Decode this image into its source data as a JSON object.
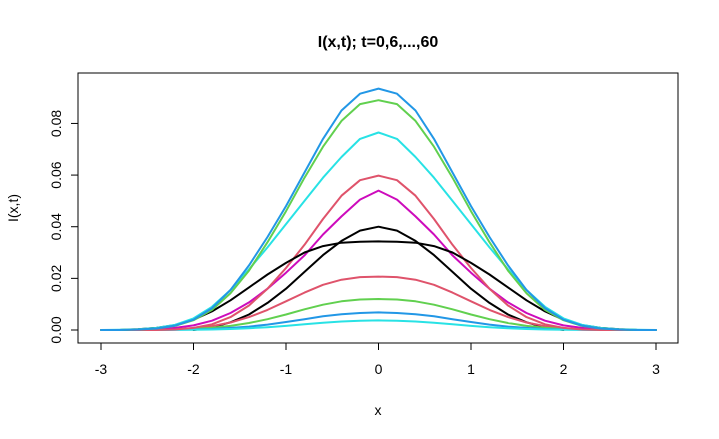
{
  "chart_data": {
    "type": "line",
    "title": "I(x,t); t=0,6,...,60",
    "xlabel": "x",
    "ylabel": "I(x,t)",
    "xlim": [
      -3,
      3
    ],
    "ylim": [
      0,
      0.094
    ],
    "xticks": [
      "-3",
      "-2",
      "-1",
      "0",
      "1",
      "2",
      "3"
    ],
    "yticks": [
      "0.00",
      "0.02",
      "0.04",
      "0.06",
      "0.08"
    ],
    "grid": false,
    "legend": "none",
    "x": [
      -3.0,
      -2.8,
      -2.6,
      -2.4,
      -2.2,
      -2.0,
      -1.8,
      -1.6,
      -1.4,
      -1.2,
      -1.0,
      -0.8,
      -0.6,
      -0.4,
      -0.2,
      0.0,
      0.2,
      0.4,
      0.6,
      0.8,
      1.0,
      1.2,
      1.4,
      1.6,
      1.8,
      2.0,
      2.2,
      2.4,
      2.6,
      2.8,
      3.0
    ],
    "series": [
      {
        "color": "#000000",
        "xrange": [
          -2.0,
          2.0
        ],
        "values": [
          null,
          null,
          null,
          null,
          null,
          0.0,
          0.001,
          0.003,
          0.006,
          0.0105,
          0.016,
          0.0225,
          0.029,
          0.0345,
          0.0385,
          0.04,
          0.0385,
          0.0345,
          0.029,
          0.0225,
          0.016,
          0.0105,
          0.006,
          0.003,
          0.001,
          0.0,
          null,
          null,
          null,
          null,
          null
        ]
      },
      {
        "color": "#DF536B",
        "values": [
          0.0,
          0.0,
          0.0,
          0.0001,
          0.0003,
          0.0007,
          0.0015,
          0.0029,
          0.005,
          0.0078,
          0.0111,
          0.0145,
          0.0175,
          0.0195,
          0.0205,
          0.0207,
          0.0205,
          0.0195,
          0.0175,
          0.0145,
          0.0111,
          0.0078,
          0.005,
          0.0029,
          0.0015,
          0.0007,
          0.0003,
          0.0001,
          0.0,
          0.0,
          0.0
        ]
      },
      {
        "color": "#61D04F",
        "values": [
          0.0,
          0.0,
          0.0,
          0.0001,
          0.0002,
          0.0004,
          0.0009,
          0.0016,
          0.0027,
          0.0042,
          0.006,
          0.008,
          0.0098,
          0.0111,
          0.0118,
          0.012,
          0.0118,
          0.0111,
          0.0098,
          0.008,
          0.006,
          0.0042,
          0.0027,
          0.0016,
          0.0009,
          0.0004,
          0.0002,
          0.0001,
          0.0,
          0.0,
          0.0
        ]
      },
      {
        "color": "#2297E6",
        "values": [
          0.0,
          0.0,
          0.0,
          0.0,
          0.0001,
          0.0002,
          0.0004,
          0.0008,
          0.0013,
          0.0021,
          0.0031,
          0.0042,
          0.0053,
          0.0061,
          0.0066,
          0.0068,
          0.0066,
          0.0061,
          0.0053,
          0.0042,
          0.0031,
          0.0021,
          0.0013,
          0.0008,
          0.0004,
          0.0002,
          0.0001,
          0.0,
          0.0,
          0.0,
          0.0
        ]
      },
      {
        "color": "#28E2E5",
        "values": [
          0.0,
          0.0,
          0.0,
          0.0,
          0.0001,
          0.0001,
          0.0002,
          0.0004,
          0.0007,
          0.0011,
          0.0016,
          0.0022,
          0.0028,
          0.0033,
          0.0036,
          0.0037,
          0.0036,
          0.0033,
          0.0028,
          0.0022,
          0.0016,
          0.0011,
          0.0007,
          0.0004,
          0.0002,
          0.0001,
          0.0001,
          0.0,
          0.0,
          0.0,
          0.0
        ]
      },
      {
        "color": "#CD0BBC",
        "values": [
          0.0,
          0.0,
          0.0001,
          0.0003,
          0.0008,
          0.0018,
          0.0036,
          0.0066,
          0.0107,
          0.016,
          0.0222,
          0.0289,
          0.037,
          0.044,
          0.0505,
          0.054,
          0.0505,
          0.044,
          0.037,
          0.0289,
          0.0222,
          0.016,
          0.0107,
          0.0066,
          0.0036,
          0.0018,
          0.0008,
          0.0003,
          0.0001,
          0.0,
          0.0
        ]
      },
      {
        "color": "#DF536B",
        "values": [
          0.0,
          0.0,
          0.0,
          0.0,
          0.0002,
          0.0008,
          0.0022,
          0.005,
          0.0095,
          0.016,
          0.024,
          0.033,
          0.043,
          0.052,
          0.058,
          0.0598,
          0.058,
          0.052,
          0.043,
          0.033,
          0.024,
          0.016,
          0.0095,
          0.005,
          0.0022,
          0.0008,
          0.0002,
          0.0,
          0.0,
          0.0,
          0.0
        ]
      },
      {
        "color": "#000000",
        "xrange": [
          -2.7,
          2.7
        ],
        "values": [
          null,
          0.0,
          0.0003,
          0.0008,
          0.0019,
          0.004,
          0.0072,
          0.0115,
          0.0165,
          0.0215,
          0.026,
          0.03,
          0.0325,
          0.0338,
          0.0342,
          0.0343,
          0.0342,
          0.0338,
          0.0325,
          0.03,
          0.026,
          0.0215,
          0.0165,
          0.0115,
          0.0072,
          0.004,
          0.0019,
          0.0008,
          0.0003,
          0.0,
          null
        ]
      },
      {
        "color": "#28E2E5",
        "values": [
          0.0,
          0.0001,
          0.0003,
          0.0008,
          0.002,
          0.0045,
          0.009,
          0.0155,
          0.0235,
          0.032,
          0.041,
          0.05,
          0.059,
          0.067,
          0.074,
          0.0765,
          0.074,
          0.067,
          0.059,
          0.05,
          0.041,
          0.032,
          0.0235,
          0.0155,
          0.009,
          0.0045,
          0.002,
          0.0008,
          0.0003,
          0.0001,
          0.0
        ]
      },
      {
        "color": "#61D04F",
        "values": [
          0.0,
          0.0,
          0.0002,
          0.0006,
          0.0016,
          0.0038,
          0.0078,
          0.0142,
          0.023,
          0.034,
          0.046,
          0.059,
          0.071,
          0.081,
          0.0875,
          0.089,
          0.0875,
          0.081,
          0.071,
          0.059,
          0.046,
          0.034,
          0.023,
          0.0142,
          0.0078,
          0.0038,
          0.0016,
          0.0006,
          0.0002,
          0.0,
          0.0
        ]
      },
      {
        "color": "#2297E6",
        "values": [
          0.0,
          0.0,
          0.0002,
          0.0006,
          0.0017,
          0.004,
          0.0085,
          0.0155,
          0.025,
          0.036,
          0.048,
          0.061,
          0.074,
          0.085,
          0.0915,
          0.0935,
          0.0915,
          0.085,
          0.074,
          0.061,
          0.048,
          0.036,
          0.025,
          0.0155,
          0.0085,
          0.004,
          0.0017,
          0.0006,
          0.0002,
          0.0,
          0.0
        ]
      }
    ]
  }
}
